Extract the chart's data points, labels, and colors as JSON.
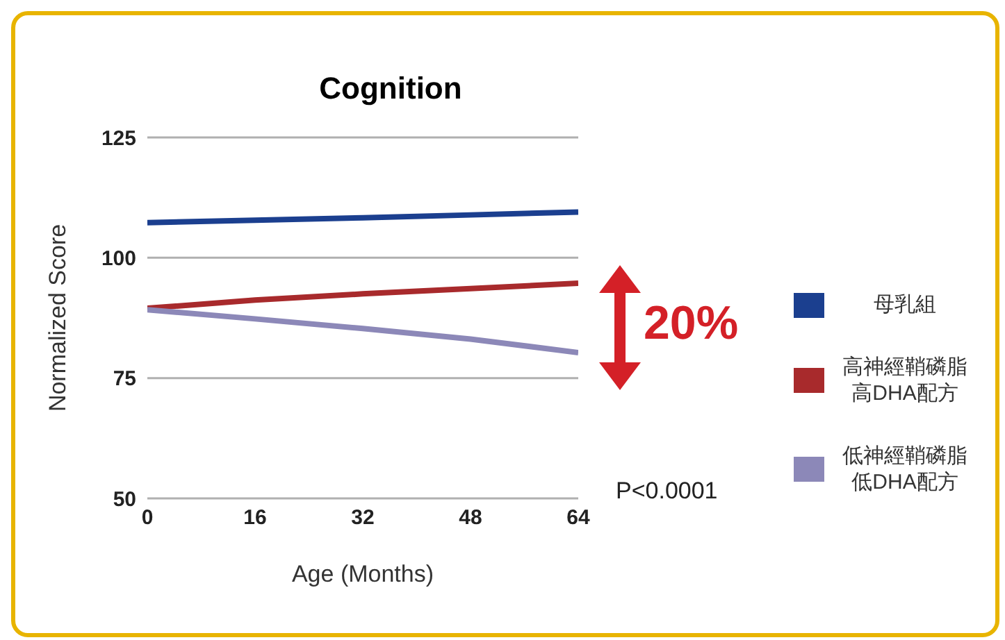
{
  "chart_data": {
    "type": "line",
    "title": "Cognition",
    "xlabel": "Age (Months)",
    "ylabel": "Normalized Score",
    "x": [
      0,
      16,
      32,
      48,
      64
    ],
    "xlim": [
      0,
      64
    ],
    "xticks": [
      0,
      16,
      32,
      48,
      64
    ],
    "ylim": [
      50,
      125
    ],
    "yticks": [
      50,
      75,
      100,
      125
    ],
    "series": [
      {
        "name": "母乳組",
        "color": "#1b3f8f",
        "values": [
          107.3,
          107.8,
          108.3,
          108.9,
          109.5
        ]
      },
      {
        "name": "高神經鞘磷脂高DHA配方",
        "color": "#a82a2c",
        "values": [
          89.5,
          91.2,
          92.5,
          93.6,
          94.7
        ]
      },
      {
        "name": "低神經鞘磷脂低DHA配方",
        "color": "#8c88b8",
        "values": [
          89.2,
          87.3,
          85.3,
          83.1,
          80.3
        ]
      }
    ],
    "grid": "y",
    "legend": "right",
    "marker": "none",
    "line_style": "solid",
    "annotations": [
      "20%",
      "P<0.0001"
    ]
  }
}
